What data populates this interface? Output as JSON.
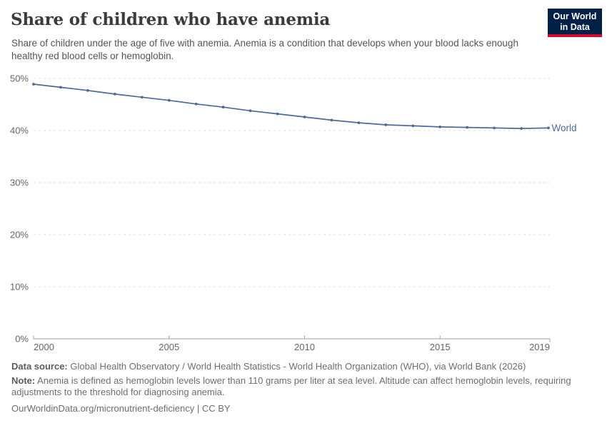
{
  "header": {
    "title": "Share of children who have anemia"
  },
  "logo": {
    "line1": "Our World",
    "line2": "in Data",
    "bg_color": "#002147",
    "accent_color": "#cf0a2c"
  },
  "subtitle": "Share of children under the age of five with anemia. Anemia is a condition that develops when your blood lacks enough healthy red blood cells or hemoglobin.",
  "chart_data": {
    "type": "line",
    "title": "Share of children who have anemia",
    "xlabel": "",
    "ylabel": "",
    "x": [
      2000,
      2001,
      2002,
      2003,
      2004,
      2005,
      2006,
      2007,
      2008,
      2009,
      2010,
      2011,
      2012,
      2013,
      2014,
      2015,
      2016,
      2017,
      2018,
      2019
    ],
    "series": [
      {
        "name": "World",
        "color": "#4C6A9C",
        "values": [
          48.9,
          48.3,
          47.7,
          47.0,
          46.4,
          45.8,
          45.1,
          44.5,
          43.8,
          43.2,
          42.6,
          42.0,
          41.5,
          41.1,
          40.9,
          40.7,
          40.6,
          40.5,
          40.4,
          40.5
        ]
      }
    ],
    "xlim": [
      2000,
      2019
    ],
    "ylim": [
      0,
      50
    ],
    "yticks": [
      {
        "value": 0,
        "label": "0%"
      },
      {
        "value": 10,
        "label": "10%"
      },
      {
        "value": 20,
        "label": "20%"
      },
      {
        "value": 30,
        "label": "30%"
      },
      {
        "value": 40,
        "label": "40%"
      },
      {
        "value": 50,
        "label": "50%"
      }
    ],
    "xticks": [
      {
        "value": 2000,
        "label": "2000"
      },
      {
        "value": 2005,
        "label": "2005"
      },
      {
        "value": 2010,
        "label": "2010"
      },
      {
        "value": 2015,
        "label": "2015"
      },
      {
        "value": 2019,
        "label": "2019"
      }
    ],
    "grid": "horizontal-dashed",
    "legend": "inline-end-label",
    "colors": {
      "grid": "#dddddd",
      "axis": "#a1a1a1",
      "tick_text": "#666666"
    }
  },
  "footer": {
    "datasource_label": "Data source:",
    "datasource_text": " Global Health Observatory / World Health Statistics - World Health Organization (WHO), via World Bank (2026)",
    "note_label": "Note:",
    "note_text": " Anemia is defined as hemoglobin levels lower than 110 grams per liter at sea level. Altitude can affect hemoglobin levels, requiring adjustments to the threshold for diagnosing anemia.",
    "citation": "OurWorldinData.org/micronutrient-deficiency | CC BY"
  }
}
